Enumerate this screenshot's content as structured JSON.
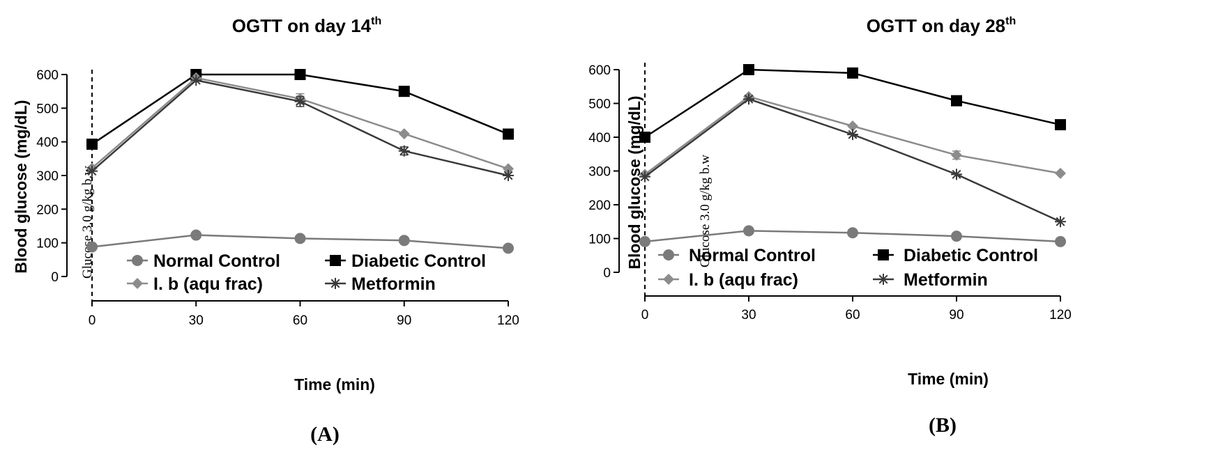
{
  "chart_data": [
    {
      "type": "line",
      "title": "OGTT on day 14",
      "title_superscript": "th",
      "panel_label": "(A)",
      "xlabel": "Time (min)",
      "ylabel": "Blood glucose (mg/dL)",
      "annotation": "Glucose 3.0 g/kg b.w",
      "x": [
        0,
        30,
        60,
        90,
        120
      ],
      "xticks": [
        "0",
        "30",
        "60",
        "90",
        "120"
      ],
      "yticks": [
        "0",
        "100",
        "200",
        "300",
        "400",
        "500",
        "600"
      ],
      "ylim": [
        0,
        600
      ],
      "grid": false,
      "series": [
        {
          "name": "Normal Control",
          "marker": "circle",
          "color": "#7a7a7a",
          "values": [
            88,
            123,
            113,
            107,
            84
          ]
        },
        {
          "name": "Diabetic Control",
          "marker": "square",
          "color": "#000000",
          "values": [
            393,
            600,
            600,
            550,
            423
          ]
        },
        {
          "name": "I. b (aqu frac)",
          "marker": "diamond",
          "color": "#8c8c8c",
          "values": [
            322,
            590,
            528,
            424,
            320
          ],
          "errors": [
            0,
            0,
            15,
            0,
            0
          ]
        },
        {
          "name": "Metformin",
          "marker": "asterisk",
          "color": "#3a3a3a",
          "values": [
            313,
            583,
            520,
            373,
            300
          ],
          "errors": [
            0,
            0,
            15,
            12,
            0
          ]
        }
      ]
    },
    {
      "type": "line",
      "title": "OGTT on day 28",
      "title_superscript": "th",
      "panel_label": "(B)",
      "xlabel": "Time (min)",
      "ylabel": "Blood glucose (mg/dL)",
      "annotation": "Glucose 3.0 g/kg b.w",
      "x": [
        0,
        30,
        60,
        90,
        120
      ],
      "xticks": [
        "0",
        "30",
        "60",
        "90",
        "120"
      ],
      "yticks": [
        "0",
        "100",
        "200",
        "300",
        "400",
        "500",
        "600"
      ],
      "ylim": [
        0,
        600
      ],
      "grid": false,
      "series": [
        {
          "name": "Normal Control",
          "marker": "circle",
          "color": "#7a7a7a",
          "values": [
            91,
            123,
            117,
            107,
            91
          ]
        },
        {
          "name": "Diabetic Control",
          "marker": "square",
          "color": "#000000",
          "values": [
            400,
            600,
            590,
            508,
            437
          ]
        },
        {
          "name": "I. b (aqu frac)",
          "marker": "diamond",
          "color": "#8c8c8c",
          "values": [
            290,
            520,
            433,
            347,
            293
          ],
          "errors": [
            0,
            0,
            0,
            12,
            0
          ]
        },
        {
          "name": "Metformin",
          "marker": "asterisk",
          "color": "#3a3a3a",
          "values": [
            283,
            513,
            408,
            290,
            150
          ]
        }
      ]
    }
  ]
}
